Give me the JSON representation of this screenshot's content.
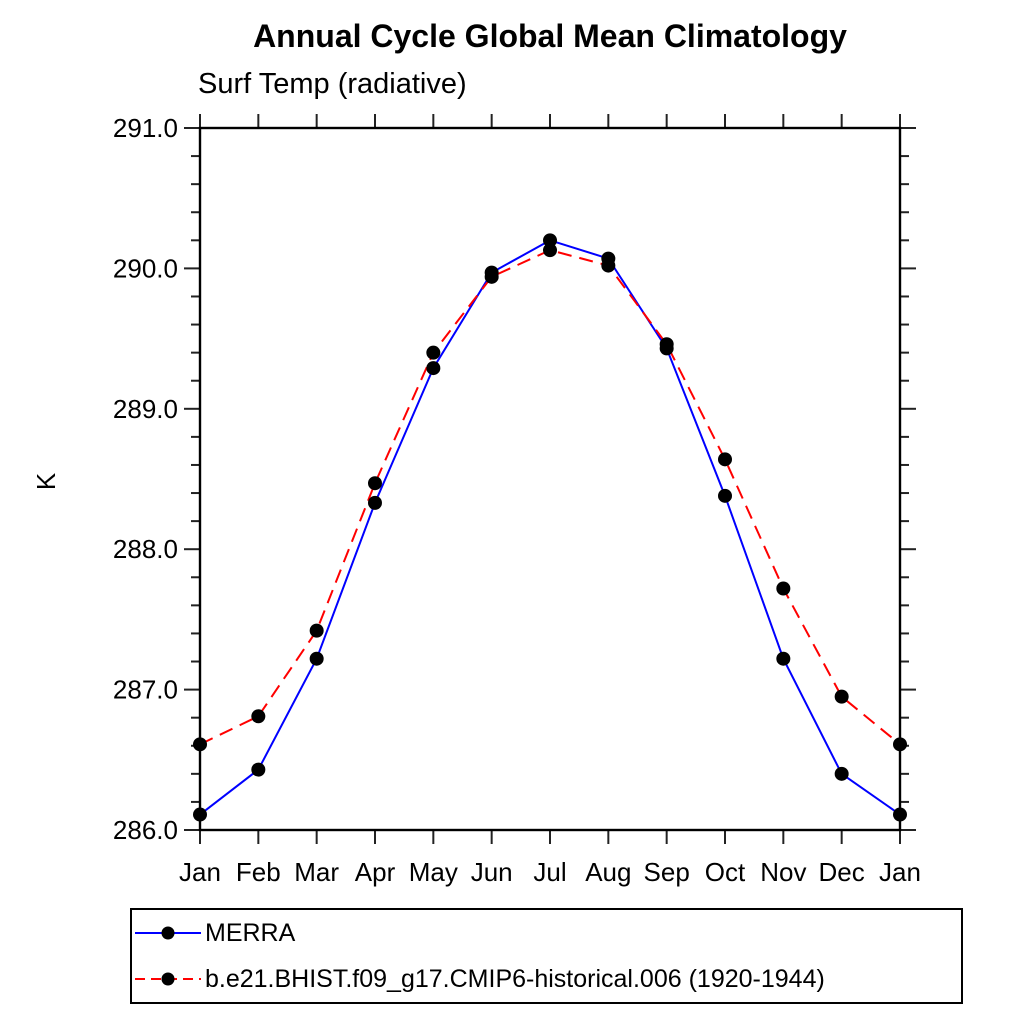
{
  "title": "Annual Cycle Global Mean Climatology",
  "subtitle": "Surf Temp (radiative)",
  "y_axis": {
    "label": "K",
    "min": 286.0,
    "max": 291.0,
    "major_step": 1.0,
    "minor_step": 0.2,
    "tick_labels": [
      "286.0",
      "287.0",
      "288.0",
      "289.0",
      "290.0",
      "291.0"
    ]
  },
  "x_axis": {
    "tick_labels": [
      "Jan",
      "Feb",
      "Mar",
      "Apr",
      "May",
      "Jun",
      "Jul",
      "Aug",
      "Sep",
      "Oct",
      "Nov",
      "Dec",
      "Jan"
    ]
  },
  "colors": {
    "merra_line": "#0000ff",
    "cesm_line": "#ff0000",
    "marker": "#000000",
    "axis": "#222222",
    "text": "#000000",
    "background": "#ffffff"
  },
  "legend": {
    "entries": [
      {
        "label": "MERRA",
        "color": "#0000ff",
        "style": "solid",
        "marker": "filled-circle"
      },
      {
        "label": "b.e21.BHIST.f09_g17.CMIP6-historical.006 (1920-1944)",
        "color": "#ff0000",
        "style": "dashed",
        "marker": "filled-circle"
      }
    ]
  },
  "chart_data": {
    "type": "line",
    "title": "Annual Cycle Global Mean Climatology",
    "subtitle": "Surf Temp (radiative)",
    "ylabel": "K",
    "xlabel": "",
    "ylim": [
      286.0,
      291.0
    ],
    "grid": false,
    "legend_position": "below",
    "x": [
      "Jan",
      "Feb",
      "Mar",
      "Apr",
      "May",
      "Jun",
      "Jul",
      "Aug",
      "Sep",
      "Oct",
      "Nov",
      "Dec",
      "Jan"
    ],
    "series": [
      {
        "name": "MERRA",
        "color": "#0000ff",
        "line_style": "solid",
        "marker": "filled-circle",
        "marker_color": "#000000",
        "values": [
          286.11,
          286.43,
          287.22,
          288.33,
          289.29,
          289.97,
          290.2,
          290.07,
          289.43,
          288.38,
          287.22,
          286.4,
          286.11
        ]
      },
      {
        "name": "b.e21.BHIST.f09_g17.CMIP6-historical.006 (1920-1944)",
        "color": "#ff0000",
        "line_style": "dashed",
        "marker": "filled-circle",
        "marker_color": "#000000",
        "values": [
          286.61,
          286.81,
          287.42,
          288.47,
          289.4,
          289.94,
          290.13,
          290.02,
          289.46,
          288.64,
          287.72,
          286.95,
          286.61
        ]
      }
    ]
  }
}
